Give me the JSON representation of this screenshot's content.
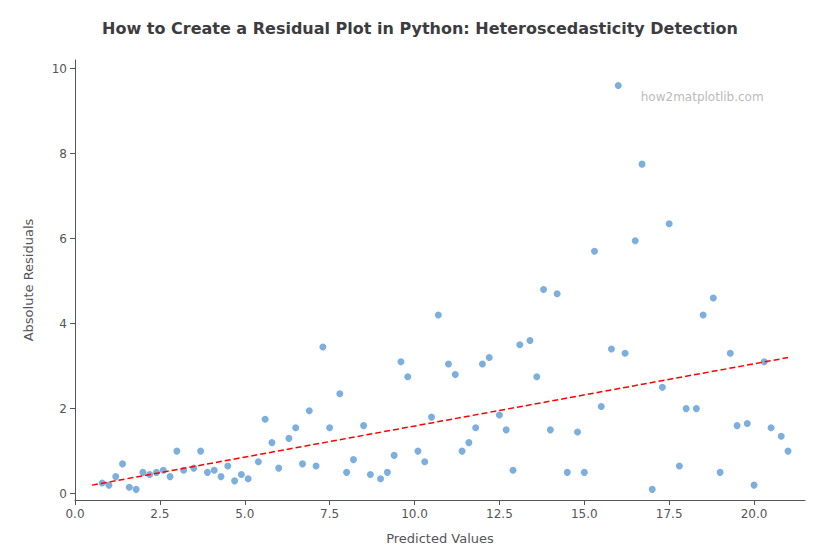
{
  "chart_data": {
    "type": "scatter",
    "title": "How to Create a Residual Plot in Python: Heteroscedasticity Detection",
    "xlabel": "Predicted Values",
    "ylabel": "Absolute Residuals",
    "annotations": [
      "how2matplotlib.com"
    ],
    "xlim": [
      0.0,
      21.5
    ],
    "ylim": [
      -0.15,
      10.2
    ],
    "xticks": [
      {
        "value": 0.0,
        "label": "0.0"
      },
      2.5,
      {
        "value": 5.0,
        "label": "5.0"
      },
      7.5,
      {
        "value": 10.0,
        "label": "10.0"
      },
      12.5,
      {
        "value": 15.0,
        "label": "15.0"
      },
      17.5,
      {
        "value": 20.0,
        "label": "20.0"
      }
    ],
    "yticks": [
      0,
      2,
      4,
      6,
      8,
      10
    ],
    "grid": false,
    "series": [
      {
        "type": "scatter",
        "color": "#5b9bd5",
        "marker": "circle",
        "x": [
          0.8,
          1.0,
          1.2,
          1.4,
          1.6,
          1.8,
          2.0,
          2.2,
          2.4,
          2.6,
          2.8,
          3.0,
          3.2,
          3.5,
          3.7,
          3.9,
          4.1,
          4.3,
          4.5,
          4.7,
          4.9,
          5.1,
          5.4,
          5.6,
          5.8,
          6.0,
          6.3,
          6.5,
          6.7,
          6.9,
          7.1,
          7.3,
          7.5,
          7.8,
          8.0,
          8.2,
          8.5,
          8.7,
          9.0,
          9.2,
          9.4,
          9.6,
          9.8,
          10.1,
          10.3,
          10.5,
          10.7,
          11.0,
          11.2,
          11.4,
          11.6,
          11.8,
          12.0,
          12.2,
          12.5,
          12.7,
          12.9,
          13.1,
          13.4,
          13.6,
          13.8,
          14.0,
          14.2,
          14.5,
          14.8,
          15.0,
          15.3,
          15.5,
          15.8,
          16.0,
          16.2,
          16.5,
          16.7,
          17.0,
          17.3,
          17.5,
          17.8,
          18.0,
          18.3,
          18.5,
          18.8,
          19.0,
          19.3,
          19.5,
          19.8,
          20.0,
          20.3,
          20.5,
          20.8,
          21.0
        ],
        "values": [
          0.25,
          0.2,
          0.4,
          0.7,
          0.15,
          0.1,
          0.5,
          0.45,
          0.5,
          0.55,
          0.4,
          1.0,
          0.55,
          0.6,
          1.0,
          0.5,
          0.55,
          0.4,
          0.65,
          0.3,
          0.45,
          0.35,
          0.75,
          1.75,
          1.2,
          0.6,
          1.3,
          1.55,
          0.7,
          1.95,
          0.65,
          3.45,
          1.55,
          2.35,
          0.5,
          0.8,
          1.6,
          0.45,
          0.35,
          0.5,
          0.9,
          3.1,
          2.75,
          1.0,
          0.75,
          1.8,
          4.2,
          3.05,
          2.8,
          1.0,
          1.2,
          1.55,
          3.05,
          3.2,
          1.85,
          1.5,
          0.55,
          3.5,
          3.6,
          2.75,
          4.8,
          1.5,
          4.7,
          0.5,
          1.45,
          0.5,
          5.7,
          2.05,
          3.4,
          9.6,
          3.3,
          5.95,
          7.75,
          0.1,
          2.5,
          6.35,
          0.65,
          2.0,
          2.0,
          4.2,
          4.6,
          0.5,
          3.3,
          1.6,
          1.65,
          0.2,
          3.1,
          1.55,
          1.35,
          1.0
        ]
      },
      {
        "type": "line",
        "color": "red",
        "line_style": "dashed",
        "x": [
          0.5,
          21.0
        ],
        "values": [
          0.2,
          3.2
        ]
      }
    ]
  }
}
